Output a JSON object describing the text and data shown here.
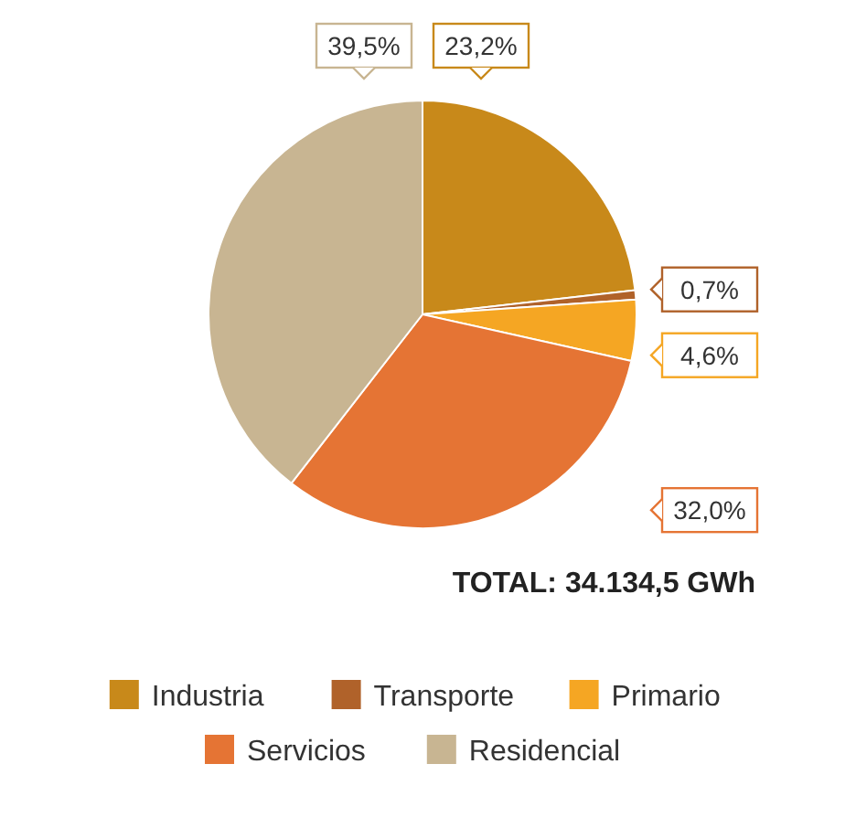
{
  "chart_data": {
    "type": "pie",
    "categories": [
      "Industria",
      "Transporte",
      "Primario",
      "Servicios",
      "Residencial"
    ],
    "values": [
      23.2,
      0.7,
      4.6,
      32.0,
      39.5
    ],
    "colors": [
      "#c8891a",
      "#b0622a",
      "#f5a623",
      "#e57434",
      "#c8b592"
    ],
    "value_labels": [
      "23,2%",
      "0,7%",
      "4,6%",
      "32,0%",
      "39,5%"
    ],
    "annotations": [
      "TOTAL: 34.134,5 GWh"
    ],
    "legend": "bottom"
  }
}
